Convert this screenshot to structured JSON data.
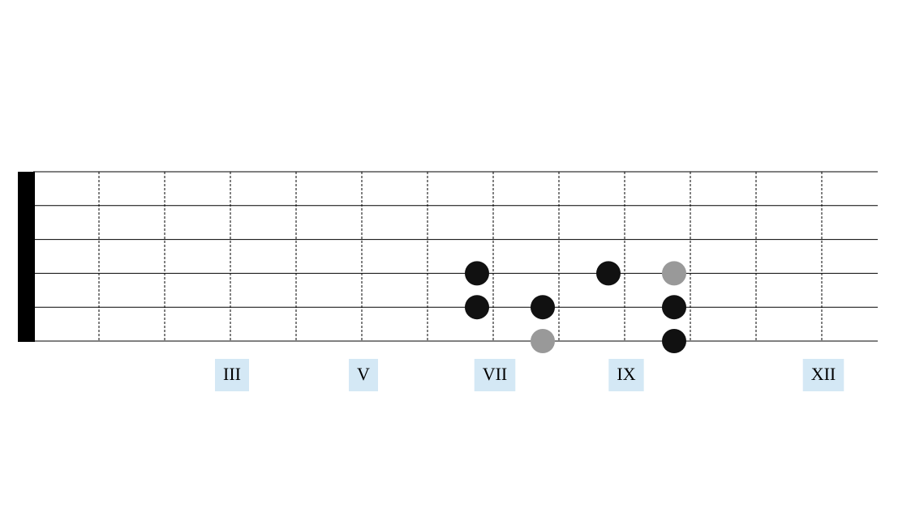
{
  "fretboard": {
    "strings": 6,
    "frets": 12,
    "markers": [
      {
        "label": "III",
        "fret": 3
      },
      {
        "label": "V",
        "fret": 5
      },
      {
        "label": "VII",
        "fret": 7
      },
      {
        "label": "IX",
        "fret": 9
      },
      {
        "label": "XII",
        "fret": 12
      }
    ],
    "notes": [
      {
        "fret": 7,
        "string": 4,
        "color": "#111111"
      },
      {
        "fret": 7,
        "string": 5,
        "color": "#111111"
      },
      {
        "fret": 8,
        "string": 5,
        "color": "#111111"
      },
      {
        "fret": 8,
        "string": 6,
        "color": "#999999"
      },
      {
        "fret": 9,
        "string": 4,
        "color": "#111111"
      },
      {
        "fret": 10,
        "string": 4,
        "color": "#999999"
      },
      {
        "fret": 10,
        "string": 5,
        "color": "#111111"
      },
      {
        "fret": 10,
        "string": 6,
        "color": "#111111"
      }
    ]
  }
}
